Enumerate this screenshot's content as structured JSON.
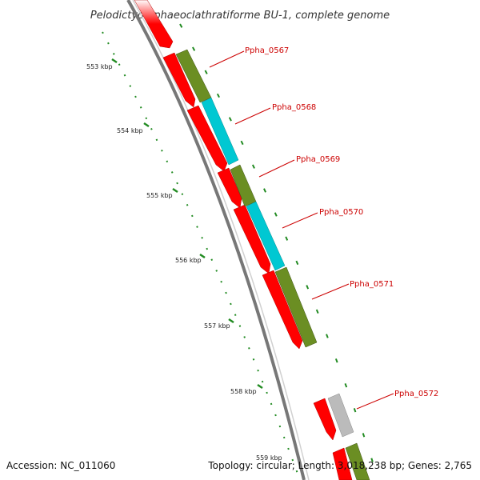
{
  "title": "Pelodictyon phaeoclathratiforme BU-1, complete genome",
  "footer": {
    "accession": "Accession: NC_011060",
    "summary": "Topology: circular; Length: 3,018,238 bp; Genes: 2,765"
  },
  "ticks": [
    {
      "label": "553 kbp"
    },
    {
      "label": "554 kbp"
    },
    {
      "label": "555 kbp"
    },
    {
      "label": "556 kbp"
    },
    {
      "label": "557 kbp"
    },
    {
      "label": "558 kbp"
    },
    {
      "label": "559 kbp"
    }
  ],
  "genes": [
    {
      "label": "Ppha_0567"
    },
    {
      "label": "Ppha_0568"
    },
    {
      "label": "Ppha_0569"
    },
    {
      "label": "Ppha_0570"
    },
    {
      "label": "Ppha_0571"
    },
    {
      "label": "Ppha_0572"
    }
  ],
  "colors": {
    "cds": "#ff0000",
    "olive": "#6b8e23",
    "cyan": "#00c8d2",
    "grey": "#bbbbbb",
    "backbone": "#777777",
    "tick": "#228b22",
    "gene_label": "#cc0000"
  }
}
